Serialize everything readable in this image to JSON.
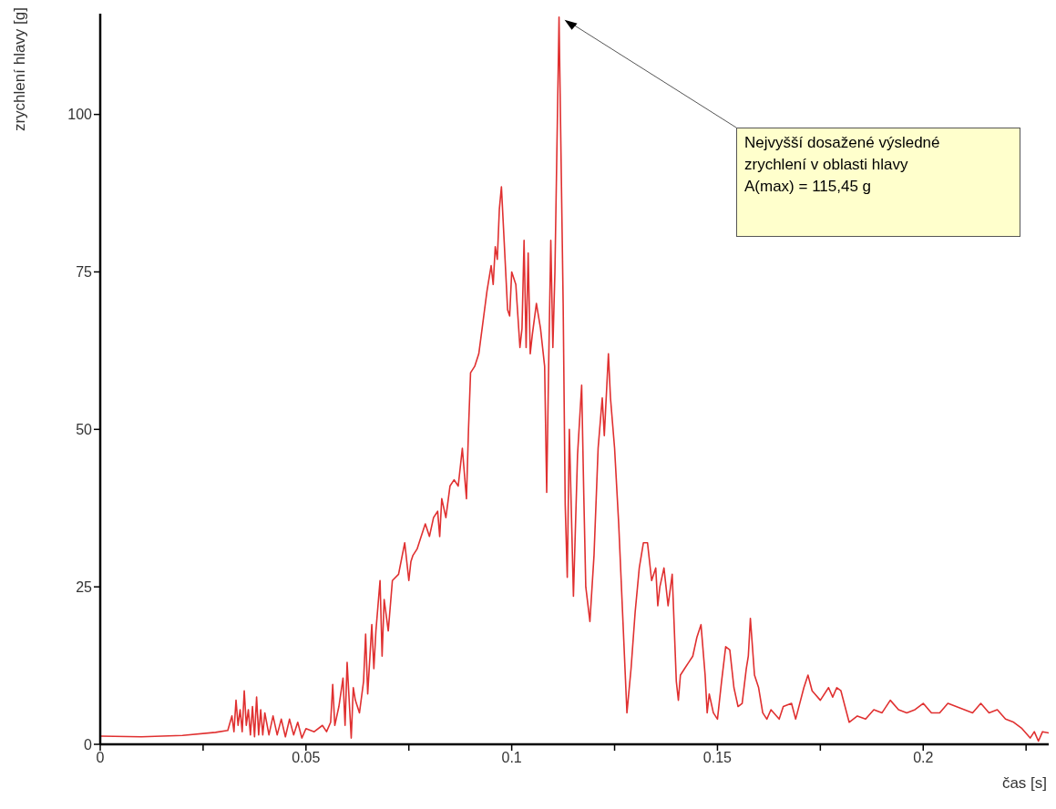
{
  "chart_data": {
    "type": "line",
    "xlabel": "čas [s]",
    "ylabel": "zrychlení hlavy [g]",
    "xlim": [
      0,
      0.2305
    ],
    "ylim": [
      0,
      116
    ],
    "xticks": [
      0,
      {
        "value": 0.025,
        "label": null
      },
      0.05,
      {
        "value": 0.075,
        "label": null
      },
      0.1,
      {
        "value": 0.125,
        "label": null
      },
      0.15,
      {
        "value": 0.175,
        "label": null
      },
      0.2,
      {
        "value": 0.225,
        "label": null
      }
    ],
    "yticks": [
      0,
      25,
      50,
      75,
      100
    ],
    "grid": false,
    "legend": false,
    "marker": "none",
    "line_style": "solid",
    "annotations": [
      "Nejvyšší dosažené výsledné\nzrychlení v oblasti hlavy\nA(max) = 115,45 g"
    ],
    "series": [
      {
        "color": "#e03030",
        "x": [
          0,
          0.01,
          0.02,
          0.028,
          0.031,
          0.032,
          0.0325,
          0.033,
          0.0335,
          0.034,
          0.0345,
          0.035,
          0.0355,
          0.036,
          0.0365,
          0.037,
          0.0375,
          0.038,
          0.0385,
          0.039,
          0.0395,
          0.04,
          0.041,
          0.042,
          0.043,
          0.044,
          0.045,
          0.046,
          0.047,
          0.048,
          0.049,
          0.05,
          0.052,
          0.054,
          0.055,
          0.056,
          0.0565,
          0.057,
          0.058,
          0.059,
          0.0595,
          0.06,
          0.061,
          0.0615,
          0.062,
          0.063,
          0.064,
          0.0645,
          0.065,
          0.066,
          0.0665,
          0.067,
          0.068,
          0.0685,
          0.069,
          0.07,
          0.071,
          0.0725,
          0.074,
          0.075,
          0.0755,
          0.076,
          0.077,
          0.078,
          0.079,
          0.08,
          0.081,
          0.082,
          0.0825,
          0.083,
          0.084,
          0.085,
          0.086,
          0.087,
          0.088,
          0.089,
          0.0895,
          0.09,
          0.091,
          0.092,
          0.093,
          0.094,
          0.095,
          0.0955,
          0.096,
          0.0965,
          0.097,
          0.0975,
          0.098,
          0.099,
          0.0995,
          0.1,
          0.101,
          0.102,
          0.1025,
          0.103,
          0.1035,
          0.104,
          0.1045,
          0.105,
          0.106,
          0.107,
          0.108,
          0.1085,
          0.109,
          0.1095,
          0.11,
          0.1105,
          0.1115,
          0.1125,
          0.113,
          0.1135,
          0.114,
          0.115,
          0.116,
          0.117,
          0.1175,
          0.118,
          0.119,
          0.12,
          0.121,
          0.122,
          0.1225,
          0.1235,
          0.124,
          0.125,
          0.126,
          0.127,
          0.128,
          0.129,
          0.13,
          0.131,
          0.132,
          0.133,
          0.134,
          0.135,
          0.1355,
          0.136,
          0.137,
          0.138,
          0.139,
          0.14,
          0.1405,
          0.141,
          0.142,
          0.143,
          0.144,
          0.145,
          0.146,
          0.147,
          0.1475,
          0.148,
          0.149,
          0.15,
          0.151,
          0.152,
          0.153,
          0.154,
          0.155,
          0.156,
          0.157,
          0.1575,
          0.158,
          0.159,
          0.16,
          0.161,
          0.162,
          0.163,
          0.165,
          0.166,
          0.168,
          0.169,
          0.171,
          0.172,
          0.173,
          0.175,
          0.177,
          0.178,
          0.179,
          0.18,
          0.181,
          0.182,
          0.184,
          0.186,
          0.188,
          0.19,
          0.192,
          0.194,
          0.196,
          0.198,
          0.2,
          0.202,
          0.204,
          0.206,
          0.208,
          0.21,
          0.212,
          0.214,
          0.216,
          0.218,
          0.22,
          0.222,
          0.224,
          0.226,
          0.227,
          0.228,
          0.229,
          0.2305
        ],
        "values": [
          1.3,
          1.2,
          1.4,
          1.9,
          2.2,
          4.5,
          2,
          7,
          3,
          5.5,
          2,
          8.5,
          3,
          5.5,
          1.5,
          6,
          1.2,
          7.5,
          1.5,
          5.5,
          1.5,
          5,
          1.5,
          4.5,
          1.5,
          4,
          1.2,
          4,
          1.5,
          3.5,
          1,
          2.5,
          2,
          3,
          2,
          3.5,
          9.5,
          3,
          6,
          10.5,
          3,
          13,
          1,
          9,
          7,
          5,
          10,
          17.5,
          8,
          19,
          12,
          18,
          26,
          14,
          23,
          18,
          26,
          27,
          32,
          26,
          29,
          30,
          31,
          33,
          35,
          33,
          36,
          37,
          33,
          39,
          36,
          41,
          42,
          41,
          47,
          39,
          50,
          59,
          60,
          62,
          67,
          72,
          76,
          73,
          79,
          77,
          85,
          88.5,
          82,
          69,
          68,
          75,
          73,
          63,
          66,
          80,
          63,
          78,
          62,
          65,
          70,
          66,
          60,
          40,
          61,
          80,
          63,
          75,
          115.45,
          70,
          38,
          26.5,
          50,
          23.5,
          46,
          57,
          40,
          25,
          19.5,
          30,
          47,
          55,
          49,
          62,
          55,
          47,
          35,
          20,
          5,
          12,
          21,
          28,
          32,
          32,
          26,
          28,
          22,
          25,
          28,
          22,
          27,
          10,
          7,
          11,
          12,
          13,
          14,
          17,
          19,
          11,
          5,
          8,
          5,
          4,
          10,
          15.5,
          15,
          9,
          6,
          6.5,
          12,
          14,
          20,
          11,
          9,
          5,
          4,
          5.5,
          4,
          6,
          6.5,
          4,
          9,
          11,
          8.5,
          7,
          9,
          7.5,
          9,
          8.5,
          6,
          3.5,
          4.5,
          4,
          5.5,
          5,
          7,
          5.5,
          5,
          5.5,
          6.5,
          5,
          5,
          6.5,
          6,
          5.5,
          5,
          6.5,
          5,
          5.5,
          4,
          3.5,
          2.5,
          1,
          2,
          0.5,
          2,
          1.8
        ]
      }
    ]
  }
}
